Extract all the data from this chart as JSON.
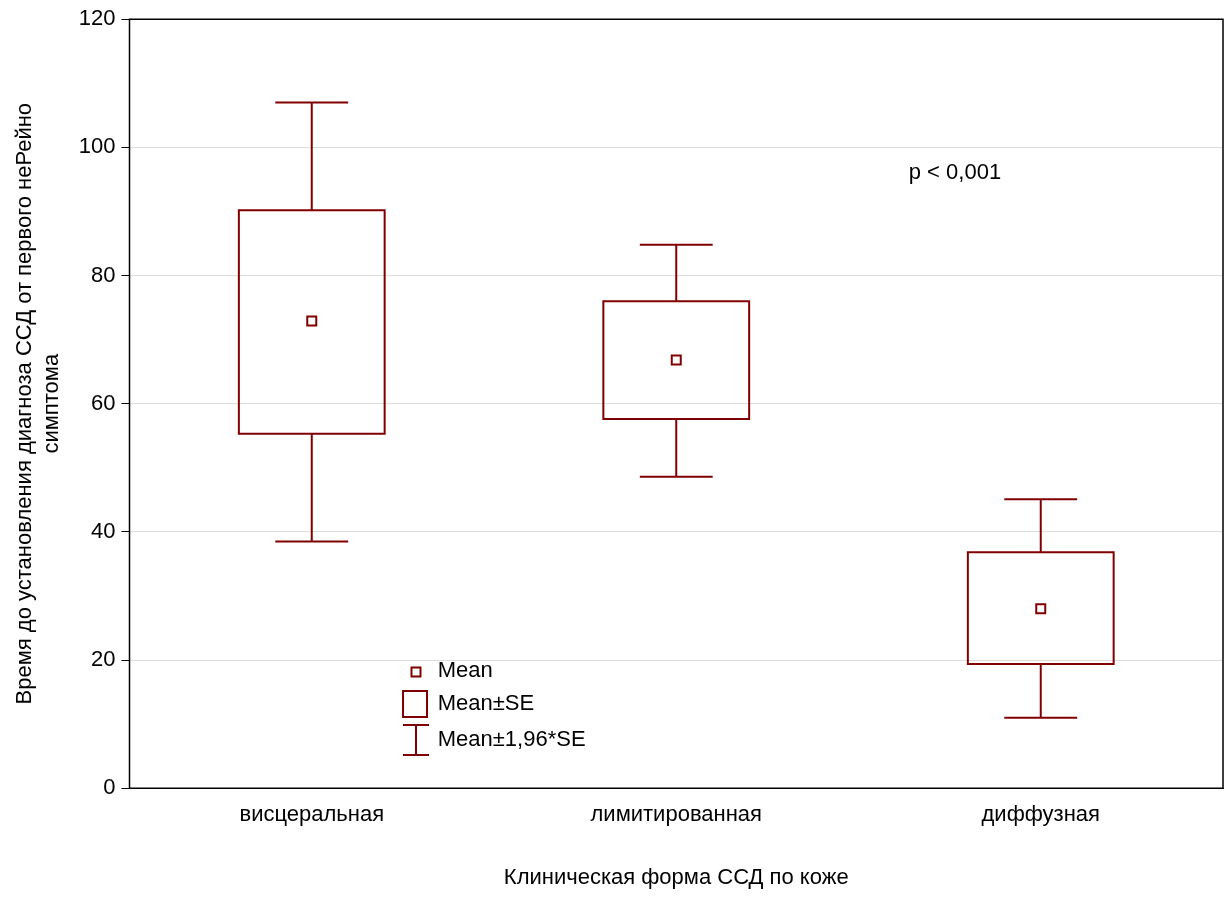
{
  "chart_data": {
    "type": "box",
    "xlabel": "Клиническая форма ССД по коже",
    "ylabel": "Время до установления диагноза ССД от первого неРейно\nсимптома",
    "categories": [
      "висцеральная",
      "лимитированная",
      "диффузная"
    ],
    "color": "#800000",
    "boxes": [
      {
        "low": 38.5,
        "q1": 55.3,
        "median": 72.9,
        "q3": 90.2,
        "high": 107
      },
      {
        "low": 48.6,
        "q1": 57.6,
        "median": 66.8,
        "q3": 76,
        "high": 84.8
      },
      {
        "low": 11,
        "q1": 19.4,
        "median": 28,
        "q3": 36.8,
        "high": 45.1
      }
    ],
    "ylim": [
      0,
      120
    ],
    "yticks": [
      0,
      20,
      40,
      60,
      80,
      100,
      120
    ],
    "grid": "y",
    "annotations": [
      "p < 0,001",
      "Mean",
      "Mean±SE",
      "Mean±1,96*SE"
    ]
  }
}
